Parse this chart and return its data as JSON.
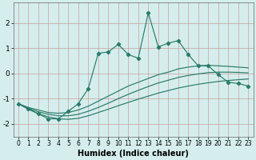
{
  "xlabel": "Humidex (Indice chaleur)",
  "x_values": [
    0,
    1,
    2,
    3,
    4,
    5,
    6,
    7,
    8,
    9,
    10,
    11,
    12,
    13,
    14,
    15,
    16,
    17,
    18,
    19,
    20,
    21,
    22,
    23
  ],
  "main_line": [
    -1.2,
    -1.4,
    -1.6,
    -1.8,
    -1.8,
    -1.5,
    -1.2,
    -0.6,
    0.8,
    0.85,
    1.15,
    0.75,
    0.6,
    2.4,
    1.05,
    1.2,
    1.3,
    0.75,
    0.3,
    0.3,
    -0.05,
    -0.35,
    -0.4,
    -0.5
  ],
  "upper_band": [
    -1.2,
    -1.35,
    -1.45,
    -1.55,
    -1.58,
    -1.55,
    -1.45,
    -1.3,
    -1.1,
    -0.9,
    -0.7,
    -0.5,
    -0.35,
    -0.2,
    -0.05,
    0.05,
    0.18,
    0.25,
    0.3,
    0.32,
    0.3,
    0.28,
    0.25,
    0.22
  ],
  "middle_band": [
    -1.2,
    -1.38,
    -1.52,
    -1.62,
    -1.68,
    -1.68,
    -1.62,
    -1.5,
    -1.35,
    -1.18,
    -1.0,
    -0.83,
    -0.67,
    -0.52,
    -0.38,
    -0.27,
    -0.16,
    -0.08,
    -0.02,
    0.03,
    0.05,
    0.05,
    0.04,
    0.02
  ],
  "lower_band": [
    -1.2,
    -1.42,
    -1.6,
    -1.72,
    -1.8,
    -1.82,
    -1.78,
    -1.68,
    -1.55,
    -1.42,
    -1.28,
    -1.15,
    -1.02,
    -0.9,
    -0.78,
    -0.68,
    -0.58,
    -0.5,
    -0.43,
    -0.37,
    -0.32,
    -0.28,
    -0.25,
    -0.22
  ],
  "line_color": "#2a7a6a",
  "bg_color": "#d5eeed",
  "grid_color": "#c8a0a0",
  "ylim": [
    -2.5,
    2.8
  ],
  "yticks": [
    -2,
    -1,
    0,
    1,
    2
  ],
  "xticks": [
    0,
    1,
    2,
    3,
    4,
    5,
    6,
    7,
    8,
    9,
    10,
    11,
    12,
    13,
    14,
    15,
    16,
    17,
    18,
    19,
    20,
    21,
    22,
    23
  ]
}
